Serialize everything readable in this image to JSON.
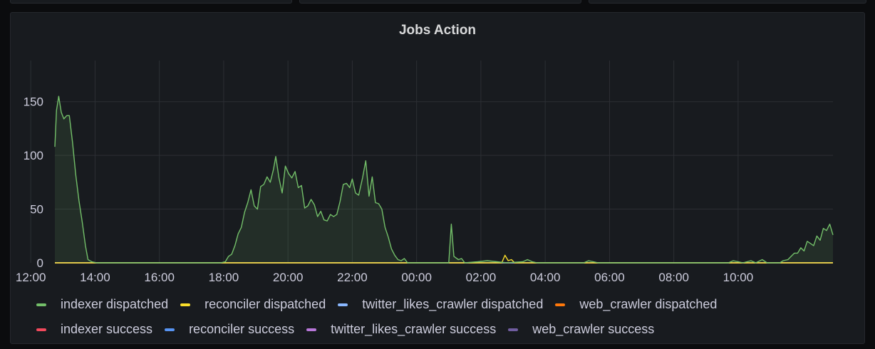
{
  "panel": {
    "title": "Jobs Action"
  },
  "colors": {
    "indexer dispatched": "#73bf69",
    "reconciler dispatched": "#fade2a",
    "twitter_likes_crawler dispatched": "#8ab8ff",
    "web_crawler dispatched": "#ff780a",
    "indexer success": "#f2495c",
    "reconciler success": "#5794f2",
    "twitter_likes_crawler success": "#b877d9",
    "web_crawler success": "#705da0"
  },
  "chart_data": {
    "type": "area",
    "title": "Jobs Action",
    "xlabel": "",
    "ylabel": "",
    "x_unit": "hours since 12:45 (first sample)",
    "x_ticks": [
      "14:00",
      "16:00",
      "18:00",
      "20:00",
      "22:00",
      "00:00",
      "02:00",
      "04:00",
      "06:00",
      "08:00",
      "10:00",
      "12:00"
    ],
    "y_ticks": [
      "0",
      "50",
      "100",
      "150"
    ],
    "ylim": [
      0,
      175
    ],
    "grid": true,
    "legend": "bottom",
    "series": [
      {
        "name": "indexer dispatched",
        "color": "#73bf69",
        "points": [
          [
            12.75,
            108
          ],
          [
            12.8,
            142
          ],
          [
            12.87,
            155
          ],
          [
            12.95,
            140
          ],
          [
            13.03,
            134
          ],
          [
            13.12,
            137
          ],
          [
            13.2,
            137
          ],
          [
            13.3,
            112
          ],
          [
            13.4,
            82
          ],
          [
            13.5,
            58
          ],
          [
            13.6,
            38
          ],
          [
            13.7,
            16
          ],
          [
            13.78,
            3
          ],
          [
            13.9,
            1
          ],
          [
            14.05,
            0
          ],
          [
            17.9,
            0
          ],
          [
            18.05,
            1
          ],
          [
            18.15,
            6
          ],
          [
            18.25,
            8
          ],
          [
            18.35,
            16
          ],
          [
            18.45,
            27
          ],
          [
            18.55,
            33
          ],
          [
            18.65,
            47
          ],
          [
            18.75,
            56
          ],
          [
            18.85,
            68
          ],
          [
            18.95,
            53
          ],
          [
            19.05,
            50
          ],
          [
            19.15,
            71
          ],
          [
            19.25,
            73
          ],
          [
            19.35,
            80
          ],
          [
            19.45,
            75
          ],
          [
            19.55,
            87
          ],
          [
            19.62,
            99
          ],
          [
            19.72,
            79
          ],
          [
            19.82,
            65
          ],
          [
            19.92,
            90
          ],
          [
            20.02,
            83
          ],
          [
            20.12,
            79
          ],
          [
            20.22,
            85
          ],
          [
            20.32,
            70
          ],
          [
            20.42,
            72
          ],
          [
            20.52,
            51
          ],
          [
            20.62,
            53
          ],
          [
            20.72,
            59
          ],
          [
            20.82,
            54
          ],
          [
            20.92,
            43
          ],
          [
            21.02,
            48
          ],
          [
            21.12,
            40
          ],
          [
            21.22,
            39
          ],
          [
            21.32,
            45
          ],
          [
            21.42,
            43
          ],
          [
            21.52,
            45
          ],
          [
            21.62,
            57
          ],
          [
            21.72,
            73
          ],
          [
            21.82,
            74
          ],
          [
            21.92,
            70
          ],
          [
            22.0,
            78
          ],
          [
            22.1,
            65
          ],
          [
            22.2,
            63
          ],
          [
            22.32,
            79
          ],
          [
            22.42,
            95
          ],
          [
            22.52,
            62
          ],
          [
            22.62,
            80
          ],
          [
            22.72,
            56
          ],
          [
            22.82,
            55
          ],
          [
            22.92,
            50
          ],
          [
            23.02,
            33
          ],
          [
            23.12,
            24
          ],
          [
            23.22,
            13
          ],
          [
            23.32,
            7
          ],
          [
            23.42,
            3
          ],
          [
            23.52,
            2
          ],
          [
            23.62,
            4
          ],
          [
            23.72,
            0
          ],
          [
            25.0,
            0
          ],
          [
            25.08,
            36
          ],
          [
            25.16,
            6
          ],
          [
            25.3,
            3
          ],
          [
            25.4,
            4
          ],
          [
            25.5,
            0
          ],
          [
            25.9,
            1
          ],
          [
            26.2,
            2
          ],
          [
            26.5,
            1
          ],
          [
            26.8,
            0
          ],
          [
            27.3,
            1
          ],
          [
            27.45,
            3
          ],
          [
            27.6,
            1
          ],
          [
            27.75,
            0
          ],
          [
            29.2,
            0
          ],
          [
            29.35,
            2
          ],
          [
            29.5,
            1
          ],
          [
            29.65,
            0
          ],
          [
            33.7,
            0
          ],
          [
            33.85,
            2
          ],
          [
            34.0,
            1
          ],
          [
            34.15,
            0
          ],
          [
            34.4,
            2
          ],
          [
            34.55,
            0
          ],
          [
            34.75,
            3
          ],
          [
            34.9,
            0
          ],
          [
            35.3,
            0
          ],
          [
            35.4,
            2
          ],
          [
            35.55,
            3
          ],
          [
            35.65,
            6
          ],
          [
            35.75,
            9
          ],
          [
            35.85,
            9
          ],
          [
            35.95,
            14
          ],
          [
            36.05,
            11
          ],
          [
            36.15,
            20
          ],
          [
            36.25,
            18
          ],
          [
            36.35,
            16
          ],
          [
            36.45,
            25
          ],
          [
            36.55,
            21
          ],
          [
            36.65,
            32
          ],
          [
            36.75,
            30
          ],
          [
            36.85,
            36
          ],
          [
            36.95,
            26
          ]
        ]
      },
      {
        "name": "reconciler dispatched",
        "color": "#fade2a",
        "points": [
          [
            12.75,
            0
          ],
          [
            26.65,
            0
          ],
          [
            26.75,
            7
          ],
          [
            26.85,
            2
          ],
          [
            26.95,
            3
          ],
          [
            27.05,
            0
          ],
          [
            36.95,
            0
          ]
        ]
      },
      {
        "name": "twitter_likes_crawler dispatched",
        "color": "#8ab8ff",
        "points": [
          [
            12.75,
            0
          ],
          [
            36.95,
            0
          ]
        ]
      },
      {
        "name": "web_crawler dispatched",
        "color": "#ff780a",
        "points": [
          [
            12.75,
            0
          ],
          [
            36.95,
            0
          ]
        ]
      },
      {
        "name": "indexer success",
        "color": "#f2495c",
        "points": [
          [
            12.75,
            0
          ],
          [
            36.95,
            0
          ]
        ]
      },
      {
        "name": "reconciler success",
        "color": "#5794f2",
        "points": [
          [
            12.75,
            0
          ],
          [
            36.95,
            0
          ]
        ]
      },
      {
        "name": "twitter_likes_crawler success",
        "color": "#b877d9",
        "points": [
          [
            12.75,
            0
          ],
          [
            36.95,
            0
          ]
        ]
      },
      {
        "name": "web_crawler success",
        "color": "#705da0",
        "points": [
          [
            12.75,
            0
          ],
          [
            36.95,
            0
          ]
        ]
      }
    ]
  },
  "legend": {
    "row1": [
      {
        "label": "indexer dispatched",
        "color": "#73bf69"
      },
      {
        "label": "reconciler dispatched",
        "color": "#fade2a"
      },
      {
        "label": "twitter_likes_crawler dispatched",
        "color": "#8ab8ff"
      },
      {
        "label": "web_crawler dispatched",
        "color": "#ff780a"
      }
    ],
    "row2": [
      {
        "label": "indexer success",
        "color": "#f2495c"
      },
      {
        "label": "reconciler success",
        "color": "#5794f2"
      },
      {
        "label": "twitter_likes_crawler success",
        "color": "#b877d9"
      },
      {
        "label": "web_crawler success",
        "color": "#705da0"
      }
    ]
  }
}
